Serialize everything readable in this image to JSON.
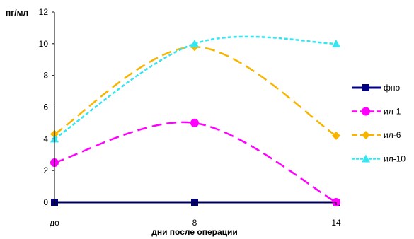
{
  "chart_data": {
    "type": "line",
    "title": "",
    "ylabel": "пг/мл",
    "xlabel": "дни после  операции",
    "categories": [
      "до",
      "8",
      "14"
    ],
    "y_ticks": [
      "0",
      "2",
      "4",
      "6",
      "8",
      "10",
      "12"
    ],
    "ylim": [
      0,
      12
    ],
    "grid": false,
    "legend_position": "right",
    "series": [
      {
        "name": "фно",
        "values": [
          0,
          0,
          0
        ],
        "color": "#000080",
        "marker": "square",
        "line_style": "solid"
      },
      {
        "name": "ил-1",
        "values": [
          2.5,
          5,
          0
        ],
        "color": "#ff00ff",
        "marker": "circle",
        "line_style": "dashed"
      },
      {
        "name": "ил-6",
        "values": [
          4.3,
          9.8,
          4.2
        ],
        "color": "#f7b500",
        "marker": "diamond",
        "line_style": "dashed"
      },
      {
        "name": "ил-10",
        "values": [
          4,
          10,
          10
        ],
        "color": "#33e6f0",
        "marker": "triangle",
        "line_style": "dotted"
      }
    ]
  }
}
